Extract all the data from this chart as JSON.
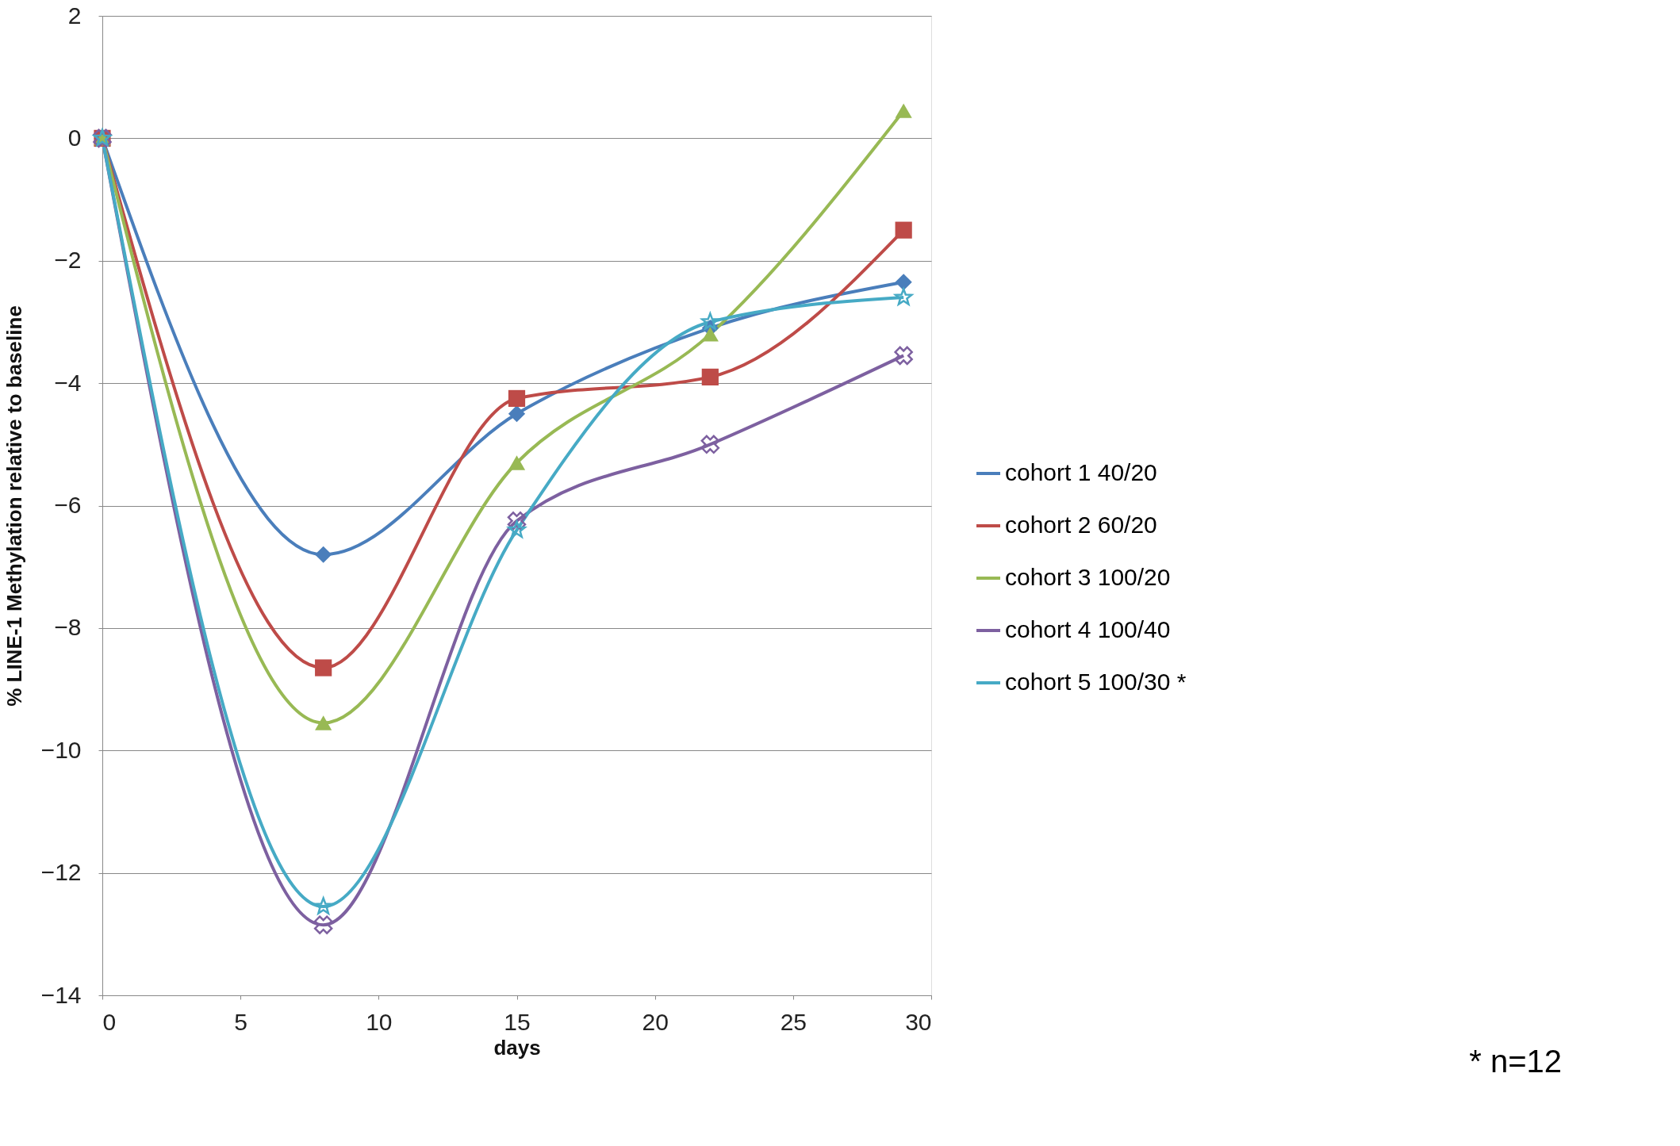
{
  "chart_data": {
    "type": "line",
    "xlabel": "days",
    "ylabel": "% LINE-1 Methylation relative to baseline",
    "x": [
      0,
      8,
      15,
      22,
      29
    ],
    "series": [
      {
        "name": "cohort 1 40/20",
        "color": "#4a7ebb",
        "marker": "diamond",
        "values": [
          0,
          -6.8,
          -4.5,
          -3.1,
          -2.35
        ]
      },
      {
        "name": "cohort 2 60/20",
        "color": "#be4b48",
        "marker": "square",
        "values": [
          0,
          -8.65,
          -4.25,
          -3.9,
          -1.5
        ]
      },
      {
        "name": "cohort 3 100/20",
        "color": "#98b954",
        "marker": "triangle",
        "values": [
          0,
          -9.55,
          -5.3,
          -3.2,
          0.45
        ]
      },
      {
        "name": "cohort 4  100/40",
        "color": "#7d60a0",
        "marker": "cross",
        "values": [
          0,
          -12.85,
          -6.25,
          -5.0,
          -3.55
        ]
      },
      {
        "name": "cohort 5 100/30   *",
        "color": "#46aac5",
        "marker": "star",
        "values": [
          0,
          -12.55,
          -6.4,
          -3.0,
          -2.6
        ]
      }
    ],
    "xlim": [
      0,
      30
    ],
    "xticks": [
      0,
      5,
      10,
      15,
      20,
      25,
      30
    ],
    "ylim": [
      -14,
      2
    ],
    "yticks": [
      -14,
      -12,
      -10,
      -8,
      -6,
      -4,
      -2,
      0,
      2
    ],
    "grid": "y",
    "legend": "right",
    "line_style": "solid",
    "annotations": [
      "* n=12"
    ]
  }
}
